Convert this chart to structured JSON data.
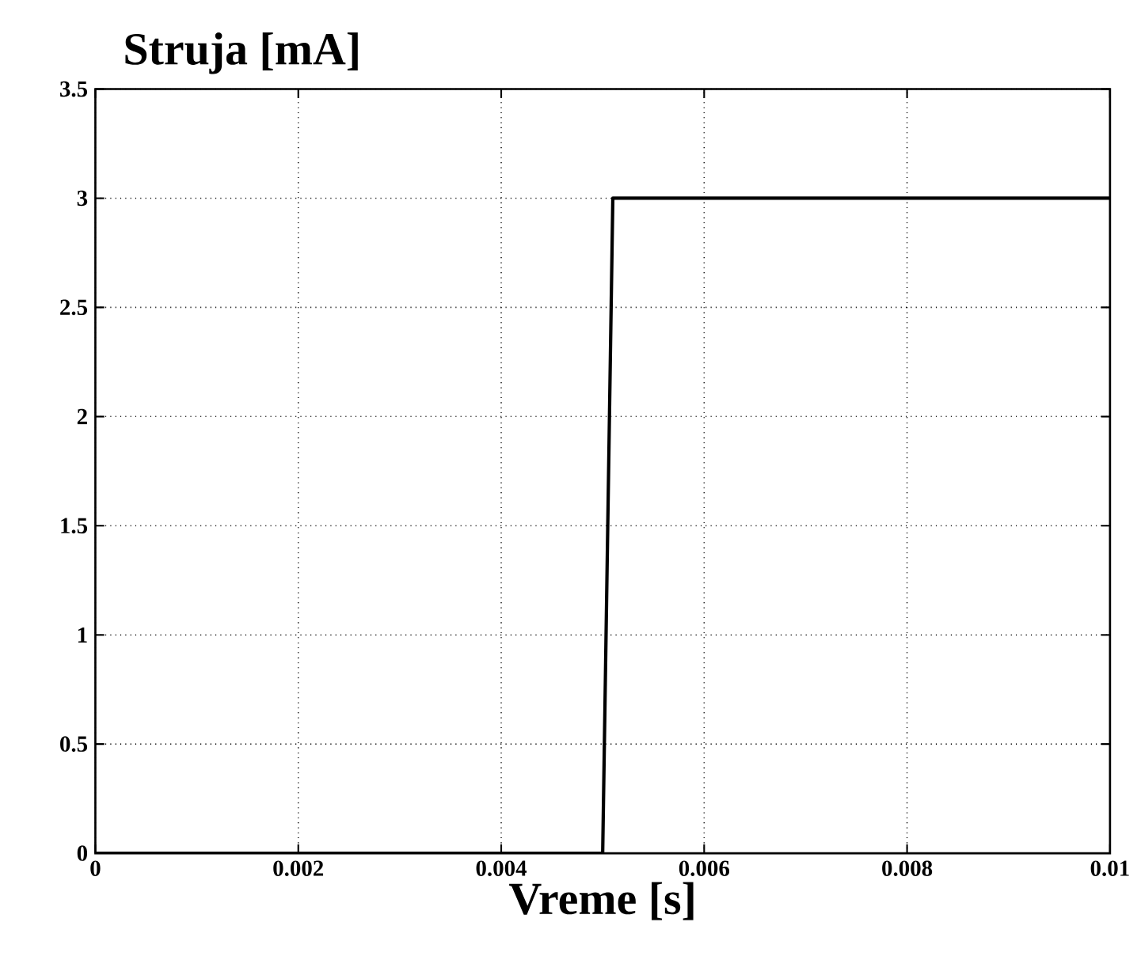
{
  "chart_data": {
    "type": "line",
    "ylabel": "Struja [mA]",
    "xlabel": "Vreme [s]",
    "x": [
      0,
      0.005,
      0.0051,
      0.01
    ],
    "series": [
      {
        "color": "#000000",
        "values": [
          0,
          0,
          3,
          3
        ]
      }
    ],
    "xlim": [
      0,
      0.01
    ],
    "ylim": [
      0,
      3.5
    ],
    "xticks": [
      0,
      0.002,
      0.004,
      0.006,
      0.008,
      0.01
    ],
    "yticks": [
      0,
      0.5,
      1,
      1.5,
      2,
      2.5,
      3,
      3.5
    ],
    "grid": true,
    "line_style": "solid"
  }
}
